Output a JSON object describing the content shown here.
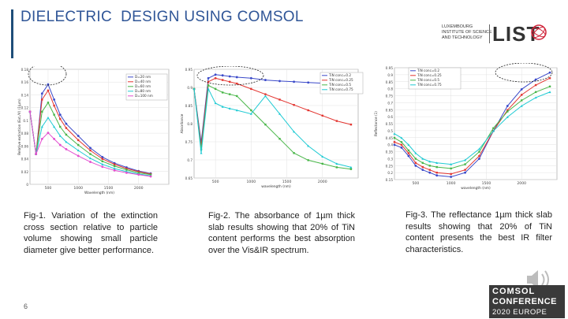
{
  "slide": {
    "title": "DIELECTRIC  DESIGN USING COMSOL",
    "page_number": "6"
  },
  "logo": {
    "lines": [
      "LUXEMBOURG",
      "INSTITUTE OF SCIENCE",
      "AND TECHNOLOGY"
    ],
    "name": "LIST"
  },
  "conference": {
    "line1": "COMSOL",
    "line2": "CONFERENCE",
    "line3": "2020 EUROPE"
  },
  "captions": {
    "fig1": "Fig-1. Variation of the extinction cross section relative to particle volume showing small particle diameter give better performance.",
    "fig2": "Fig-2. The absorbance of 1µm thick slab results showing that 20% of TiN content performs the best absorption over the Vis&IR spectrum.",
    "fig3": "Fig-3. The reflectance 1µm thick slab results showing that 20% of TiN content presents the best IR filter characteristics."
  },
  "colors": {
    "title": "#2f5597",
    "series": [
      "#3a49c9",
      "#e3342f",
      "#48b648",
      "#1ecad3",
      "#e34fd0"
    ]
  },
  "chart_data": [
    {
      "type": "line",
      "xlabel": "Wavelength (nm)",
      "ylabel": "Relative extinction (Ext./V) (1/µm)",
      "xlim": [
        200,
        2500
      ],
      "ylim": [
        0.0,
        0.19
      ],
      "xticks": [
        "500",
        "1000",
        "1500",
        "2000"
      ],
      "yticks": [
        "0.18",
        "0.16",
        "0.14",
        "0.12",
        "0.1",
        "0.08",
        "0.06",
        "0.04",
        "0.02",
        "0"
      ],
      "x": [
        200,
        300,
        400,
        500,
        600,
        700,
        800,
        1000,
        1200,
        1400,
        1600,
        1800,
        2000,
        2200
      ],
      "series": [
        {
          "name": "D=20 nm",
          "values": [
            0.12,
            0.05,
            0.15,
            0.165,
            0.14,
            0.115,
            0.1,
            0.08,
            0.06,
            0.045,
            0.035,
            0.028,
            0.022,
            0.018
          ]
        },
        {
          "name": "D=40 nm",
          "values": [
            0.12,
            0.05,
            0.14,
            0.155,
            0.13,
            0.108,
            0.093,
            0.073,
            0.056,
            0.042,
            0.033,
            0.026,
            0.021,
            0.017
          ]
        },
        {
          "name": "D=60 nm",
          "values": [
            0.12,
            0.05,
            0.12,
            0.135,
            0.115,
            0.095,
            0.082,
            0.065,
            0.05,
            0.038,
            0.03,
            0.024,
            0.019,
            0.016
          ]
        },
        {
          "name": "D=80 nm",
          "values": [
            0.12,
            0.05,
            0.095,
            0.11,
            0.095,
            0.08,
            0.07,
            0.056,
            0.043,
            0.033,
            0.026,
            0.021,
            0.017,
            0.014
          ]
        },
        {
          "name": "D=100 nm",
          "values": [
            0.12,
            0.05,
            0.075,
            0.085,
            0.075,
            0.065,
            0.058,
            0.047,
            0.037,
            0.029,
            0.023,
            0.019,
            0.016,
            0.013
          ]
        }
      ]
    },
    {
      "type": "line",
      "xlabel": "wavelength (nm)",
      "ylabel": "Absorbance",
      "xlim": [
        200,
        2500
      ],
      "ylim": [
        0.65,
        0.955
      ],
      "xticks": [
        "500",
        "1000",
        "1500",
        "2000"
      ],
      "yticks": [
        "0.95",
        "0.9",
        "0.85",
        "0.8",
        "0.75",
        "0.7",
        "0.65"
      ],
      "x": [
        200,
        300,
        400,
        500,
        600,
        700,
        800,
        1000,
        1200,
        1400,
        1600,
        1800,
        2000,
        2200,
        2400
      ],
      "series": [
        {
          "name": "TiN conc=0.2",
          "values": [
            0.9,
            0.75,
            0.93,
            0.94,
            0.938,
            0.935,
            0.933,
            0.93,
            0.925,
            0.922,
            0.92,
            0.918,
            0.916,
            0.914,
            0.912
          ]
        },
        {
          "name": "TiN conc=0.25",
          "values": [
            0.9,
            0.74,
            0.92,
            0.93,
            0.925,
            0.92,
            0.915,
            0.9,
            0.885,
            0.87,
            0.855,
            0.84,
            0.825,
            0.81,
            0.8
          ]
        },
        {
          "name": "TiN conc=0.5",
          "values": [
            0.9,
            0.73,
            0.91,
            0.9,
            0.89,
            0.885,
            0.88,
            0.84,
            0.8,
            0.76,
            0.72,
            0.7,
            0.69,
            0.68,
            0.675
          ]
        },
        {
          "name": "TiN conc=0.75",
          "values": [
            0.9,
            0.72,
            0.9,
            0.86,
            0.85,
            0.845,
            0.84,
            0.83,
            0.88,
            0.83,
            0.78,
            0.74,
            0.71,
            0.69,
            0.68
          ]
        }
      ]
    },
    {
      "type": "line",
      "xlabel": "wavelength (nm)",
      "ylabel": "Reflectance (1)",
      "xlim": [
        200,
        2500
      ],
      "ylim": [
        0.15,
        0.955
      ],
      "xticks": [
        "500",
        "1000",
        "1500",
        "2000"
      ],
      "yticks": [
        "0.95",
        "0.9",
        "0.85",
        "0.8",
        "0.75",
        "0.7",
        "0.65",
        "0.6",
        "0.55",
        "0.5",
        "0.45",
        "0.4",
        "0.35",
        "0.3",
        "0.25",
        "0.2",
        "0.15"
      ],
      "x": [
        200,
        300,
        400,
        500,
        600,
        700,
        800,
        1000,
        1200,
        1400,
        1600,
        1800,
        2000,
        2200,
        2400
      ],
      "series": [
        {
          "name": "TiN conc=0.2",
          "values": [
            0.4,
            0.38,
            0.32,
            0.25,
            0.22,
            0.2,
            0.18,
            0.17,
            0.2,
            0.3,
            0.5,
            0.68,
            0.8,
            0.87,
            0.92
          ]
        },
        {
          "name": "TiN conc=0.25",
          "values": [
            0.42,
            0.4,
            0.34,
            0.27,
            0.24,
            0.22,
            0.2,
            0.19,
            0.22,
            0.32,
            0.5,
            0.65,
            0.76,
            0.83,
            0.88
          ]
        },
        {
          "name": "TiN conc=0.5",
          "values": [
            0.45,
            0.42,
            0.36,
            0.3,
            0.27,
            0.25,
            0.24,
            0.23,
            0.26,
            0.35,
            0.52,
            0.64,
            0.72,
            0.78,
            0.82
          ]
        },
        {
          "name": "TiN conc=0.75",
          "values": [
            0.48,
            0.45,
            0.4,
            0.34,
            0.3,
            0.28,
            0.27,
            0.26,
            0.29,
            0.37,
            0.5,
            0.6,
            0.68,
            0.74,
            0.78
          ]
        }
      ]
    }
  ]
}
